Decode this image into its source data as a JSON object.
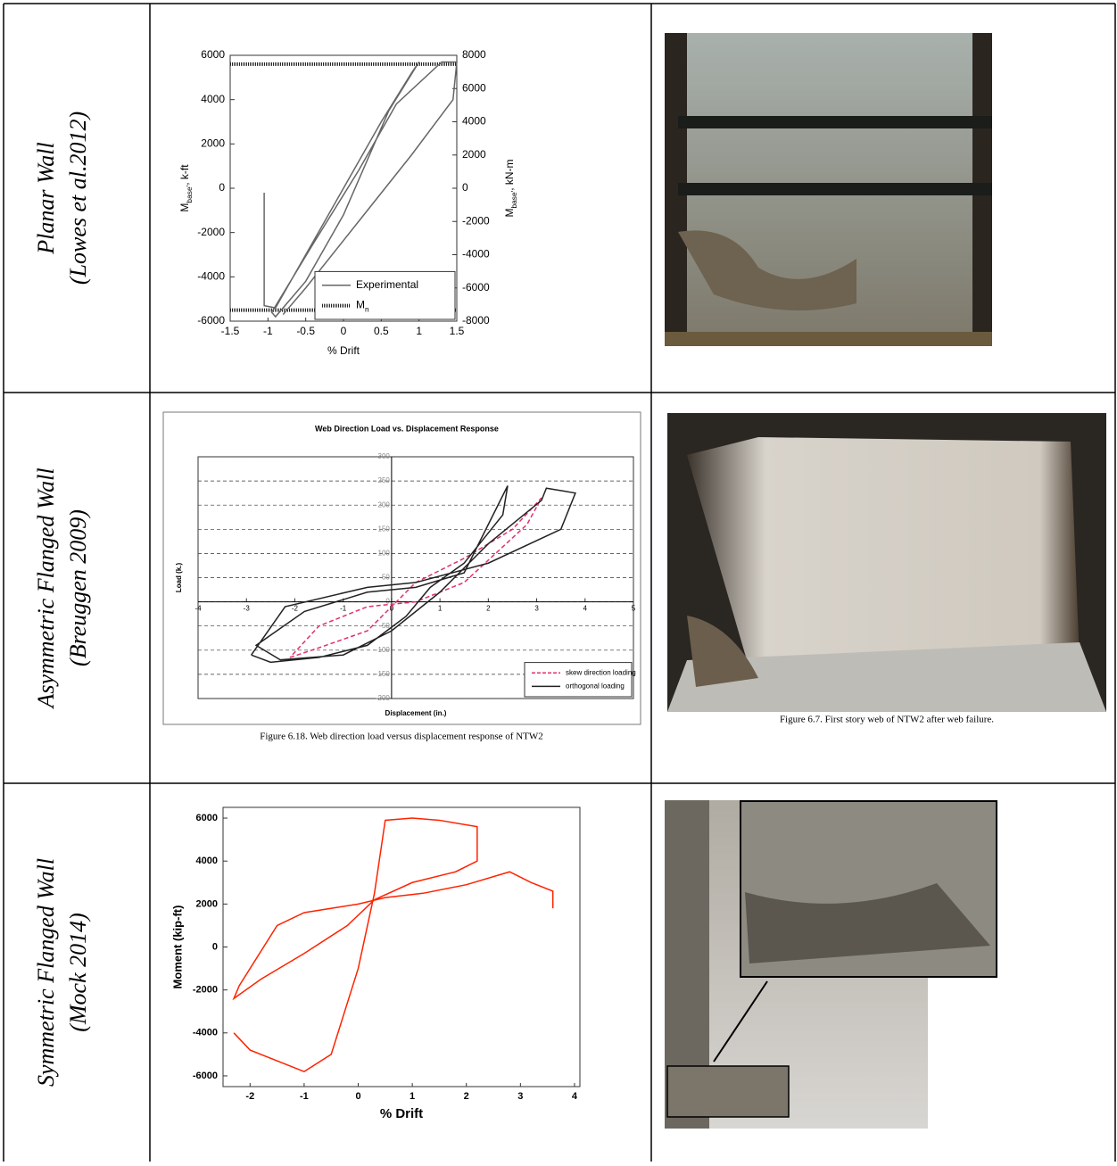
{
  "table": {
    "rows": [
      {
        "label": [
          "Planar Wall",
          "(Lowes et al.2012)"
        ],
        "chart": {
          "type": "line",
          "xlabel": "% Drift",
          "ylabel": {
            "main": "M",
            "sub": "base'",
            "rest": ", k-ft"
          },
          "y2label": {
            "main": "M",
            "sub": "base'",
            "rest": ", kN-m"
          },
          "xlim": [
            -1.5,
            1.5
          ],
          "ylim": [
            -6000,
            6000
          ],
          "y2lim": [
            -8000,
            8000
          ],
          "xticks": [
            -1.5,
            -1,
            -0.5,
            0,
            0.5,
            1,
            1.5
          ],
          "yticks": [
            -6000,
            -4000,
            -2000,
            0,
            2000,
            4000,
            6000
          ],
          "y2ticks": [
            -8000,
            -6000,
            -4000,
            -2000,
            0,
            2000,
            4000,
            6000,
            8000
          ],
          "reference_lines": {
            "name": "M",
            "sub": "n",
            "color": "#222",
            "values": [
              5600,
              -5500
            ]
          },
          "legend": "lower right",
          "series": [
            {
              "name": "Experimental",
              "color": "#666",
              "x": [
                -1.05,
                -1.05,
                -0.9,
                -0.5,
                0,
                0.5,
                0.9,
                1.0,
                0.6,
                0,
                -0.5,
                -0.9,
                -0.95,
                -0.4,
                0.2,
                0.7,
                1.3,
                1.5,
                1.45,
                0.9,
                0.2,
                -0.5,
                -0.8
              ],
              "y": [
                -200,
                -5300,
                -5400,
                -3000,
                0,
                3000,
                5200,
                5700,
                3500,
                -1200,
                -4200,
                -5800,
                -5600,
                -2500,
                800,
                3800,
                5700,
                5700,
                4000,
                1500,
                -1500,
                -4500,
                -5700
              ]
            }
          ]
        }
      },
      {
        "label": [
          "Asymmetric Flanged Wall",
          "(Breuggen 2009)"
        ],
        "chart": {
          "type": "line",
          "title": "Web Direction Load vs. Displacement Response",
          "xlabel": "Displacement (in.)",
          "ylabel": "Load (k.)",
          "xlim": [
            -4,
            5
          ],
          "ylim": [
            -200,
            300
          ],
          "xticks": [
            -4,
            -3,
            -2,
            -1,
            0,
            1,
            2,
            3,
            4,
            5
          ],
          "yticks": [
            -200,
            -150,
            -100,
            -50,
            0,
            50,
            100,
            150,
            200,
            250,
            300
          ],
          "grid": true,
          "axes_at_zero": true,
          "legend": "lower right",
          "series": [
            {
              "name": "skew direction loading",
              "color": "#e0306a",
              "dash": true,
              "x": [
                -2.1,
                -1.5,
                -0.5,
                0,
                0.5,
                1.5,
                2.5,
                3.1,
                2.8,
                1.5,
                0.5,
                -0.5,
                -1.5,
                -2.1
              ],
              "y": [
                -115,
                -95,
                -60,
                -10,
                40,
                90,
                150,
                215,
                160,
                40,
                0,
                -10,
                -50,
                -115
              ]
            },
            {
              "name": "orthogonal loading",
              "color": "#222",
              "x": [
                -2.9,
                -2.5,
                -1.5,
                -0.5,
                0.3,
                0.8,
                1.5,
                2.3,
                2.4,
                1.5,
                0.5,
                -0.5,
                -1.8,
                -2.8,
                -2.3,
                -1,
                0,
                1,
                2,
                3.1,
                3.2,
                3.8,
                3.5,
                2,
                0.5,
                -0.5,
                -2.2,
                -2.9
              ],
              "y": [
                -110,
                -125,
                -115,
                -90,
                -30,
                30,
                80,
                180,
                240,
                60,
                30,
                20,
                -20,
                -90,
                -120,
                -110,
                -60,
                20,
                120,
                210,
                235,
                225,
                150,
                80,
                40,
                30,
                -10,
                -110
              ]
            }
          ]
        },
        "chart_caption": "Figure 6.18.  Web direction load versus displacement response of NTW2",
        "photo_caption": "Figure 6.7.  First story web of NTW2 after web failure."
      },
      {
        "label": [
          "Symmetric Flanged Wall",
          "(Mock 2014)"
        ],
        "chart": {
          "type": "line",
          "xlabel": "% Drift",
          "ylabel": "Moment (kip-ft)",
          "xlim": [
            -2.5,
            4.1
          ],
          "ylim": [
            -6500,
            6500
          ],
          "xticks": [
            -2,
            -1,
            0,
            1,
            2,
            3,
            4
          ],
          "yticks": [
            -6000,
            -4000,
            -2000,
            0,
            2000,
            4000,
            6000
          ],
          "series": [
            {
              "color": "#ff2200",
              "x": [
                -2.3,
                -2,
                -1,
                -0.5,
                0,
                0.3,
                0.5,
                1,
                1.5,
                2.2,
                2.2,
                1.8,
                1,
                0.3,
                -0.2,
                -1,
                -1.8,
                -2.3,
                -2.2,
                -1.5,
                -1,
                0,
                0.5,
                1.2,
                2,
                2.8,
                3.2,
                3.6,
                3.6
              ],
              "y": [
                -4000,
                -4800,
                -5800,
                -5000,
                -1000,
                2500,
                5900,
                6000,
                5900,
                5600,
                4000,
                3500,
                3000,
                2200,
                1000,
                -300,
                -1500,
                -2400,
                -1800,
                1000,
                1600,
                2000,
                2300,
                2500,
                2900,
                3500,
                3000,
                2600,
                1800
              ]
            }
          ]
        }
      }
    ]
  }
}
